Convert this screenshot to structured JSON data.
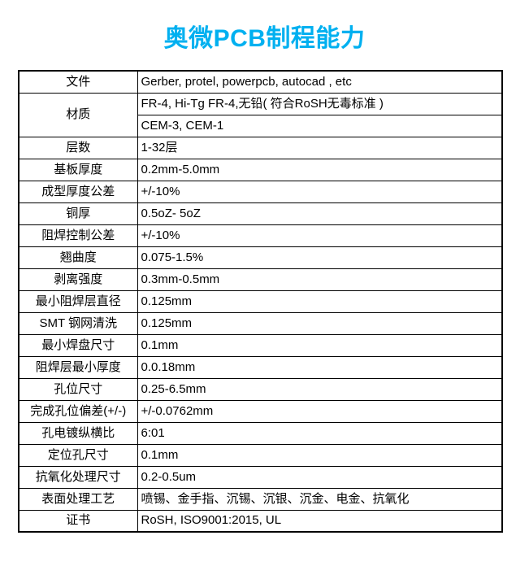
{
  "title": {
    "text": "奥微PCB制程能力",
    "color": "#00B0F0"
  },
  "table": {
    "rows": [
      {
        "label": "文件",
        "value": "Gerber, protel, powerpcb, autocad , etc"
      },
      {
        "label": "材质",
        "values": [
          "FR-4, Hi-Tg FR-4,无铅( 符合RoSH无毒标准 )",
          "CEM-3, CEM-1"
        ]
      },
      {
        "label": "层数",
        "value": "1-32层"
      },
      {
        "label": "基板厚度",
        "value": "0.2mm-5.0mm"
      },
      {
        "label": "成型厚度公差",
        "value": "+/-10%"
      },
      {
        "label": "铜厚",
        "value": "0.5oZ- 5oZ"
      },
      {
        "label": "阻焊控制公差",
        "value": "+/-10%"
      },
      {
        "label": "翘曲度",
        "value": "0.075-1.5%"
      },
      {
        "label": "剥离强度",
        "value": "0.3mm-0.5mm"
      },
      {
        "label": "最小阻焊层直径",
        "value": "0.125mm"
      },
      {
        "label": "SMT 钢网清洗",
        "value": "0.125mm"
      },
      {
        "label": "最小焊盘尺寸",
        "value": "0.1mm"
      },
      {
        "label": "阻焊层最小厚度",
        "value": "0.0.18mm"
      },
      {
        "label": "孔位尺寸",
        "value": "0.25-6.5mm"
      },
      {
        "label": "完成孔位偏差(+/-)",
        "value": "+/-0.0762mm"
      },
      {
        "label": "孔电镀纵横比",
        "value": "6:01"
      },
      {
        "label": "定位孔尺寸",
        "value": "0.1mm"
      },
      {
        "label": "抗氧化处理尺寸",
        "value": "0.2-0.5um"
      },
      {
        "label": "表面处理工艺",
        "value": "喷锡、金手指、沉锡、沉银、沉金、电金、抗氧化"
      },
      {
        "label": "证书",
        "value": "RoSH, ISO9001:2015, UL"
      }
    ]
  }
}
